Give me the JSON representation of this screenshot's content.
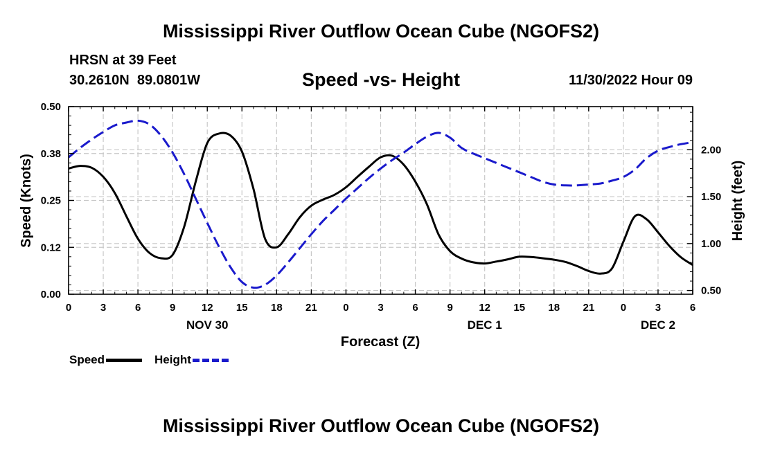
{
  "header": {
    "main_title": "Mississippi River Outflow Ocean Cube (NGOFS2)",
    "station": "HRSN at 39 Feet",
    "coords": "30.2610N  89.0801W",
    "subtitle": "Speed -vs- Height",
    "datetime": "11/30/2022 Hour 09",
    "footer_title": "Mississippi River Outflow Ocean Cube (NGOFS2)"
  },
  "legend": {
    "speed_label": "Speed",
    "height_label": "Height"
  },
  "colors": {
    "speed": "#000000",
    "height": "#1a1acc",
    "grid": "#c8c8c8"
  },
  "chart_data": {
    "type": "line",
    "xlabel": "Forecast (Z)",
    "x_unit": "hours since 2022-11-30 00Z",
    "xlim": [
      0,
      54
    ],
    "x_ticks": [
      0,
      3,
      6,
      9,
      12,
      15,
      18,
      21,
      24,
      27,
      30,
      33,
      36,
      39,
      42,
      45,
      48,
      51,
      54
    ],
    "x_tick_labels": [
      "0",
      "3",
      "6",
      "9",
      "12",
      "15",
      "18",
      "21",
      "0",
      "3",
      "6",
      "9",
      "12",
      "15",
      "18",
      "21",
      "0",
      "3",
      "6"
    ],
    "day_labels": [
      {
        "x": 12,
        "text": "NOV 30"
      },
      {
        "x": 36,
        "text": "DEC 1"
      },
      {
        "x": 51,
        "text": "DEC 2"
      }
    ],
    "y_left": {
      "label": "Speed (Knots)",
      "lim": [
        0,
        0.5
      ],
      "ticks": [
        0,
        0.125,
        0.25,
        0.375,
        0.5
      ],
      "tick_labels": [
        "0.00",
        "0.12",
        "0.25",
        "0.38",
        "0.50"
      ]
    },
    "y_right": {
      "label": "Height (feet)",
      "lim": [
        0.46,
        2.46
      ],
      "ticks": [
        0.5,
        1.0,
        1.5,
        2.0
      ],
      "tick_labels": [
        "0.50",
        "1.00",
        "1.50",
        "2.00"
      ]
    },
    "series": [
      {
        "name": "Speed",
        "axis": "left",
        "style": "solid",
        "x": [
          0,
          1,
          2,
          3,
          4,
          5,
          6,
          7,
          8,
          9,
          10,
          11,
          12,
          13,
          14,
          15,
          16,
          17,
          18,
          19,
          20,
          21,
          22,
          23,
          24,
          25,
          26,
          27,
          28,
          29,
          30,
          31,
          32,
          33,
          34,
          35,
          36,
          37,
          38,
          39,
          40,
          41,
          42,
          43,
          44,
          45,
          46,
          47,
          48,
          49,
          50,
          51,
          52,
          53,
          54
        ],
        "values": [
          0.335,
          0.342,
          0.337,
          0.313,
          0.27,
          0.208,
          0.148,
          0.11,
          0.096,
          0.105,
          0.18,
          0.3,
          0.403,
          0.428,
          0.423,
          0.38,
          0.28,
          0.148,
          0.125,
          0.16,
          0.205,
          0.236,
          0.252,
          0.265,
          0.285,
          0.313,
          0.34,
          0.365,
          0.369,
          0.345,
          0.3,
          0.24,
          0.16,
          0.115,
          0.095,
          0.085,
          0.082,
          0.087,
          0.093,
          0.1,
          0.099,
          0.096,
          0.092,
          0.086,
          0.075,
          0.062,
          0.055,
          0.068,
          0.14,
          0.208,
          0.2,
          0.165,
          0.128,
          0.098,
          0.078
        ]
      },
      {
        "name": "Height",
        "axis": "right",
        "style": "dashed",
        "x": [
          0,
          1,
          2,
          3,
          4,
          5,
          6,
          7,
          8,
          9,
          10,
          11,
          12,
          13,
          14,
          15,
          16,
          17,
          18,
          19,
          20,
          21,
          22,
          23,
          24,
          25,
          26,
          27,
          28,
          29,
          30,
          31,
          32,
          33,
          34,
          35,
          36,
          37,
          38,
          39,
          40,
          41,
          42,
          43,
          44,
          45,
          46,
          47,
          48,
          49,
          50,
          51,
          52,
          53,
          54
        ],
        "values": [
          1.92,
          2.02,
          2.11,
          2.19,
          2.26,
          2.29,
          2.31,
          2.27,
          2.15,
          1.97,
          1.74,
          1.48,
          1.22,
          0.97,
          0.75,
          0.59,
          0.53,
          0.56,
          0.66,
          0.8,
          0.95,
          1.1,
          1.24,
          1.36,
          1.48,
          1.59,
          1.7,
          1.8,
          1.89,
          1.97,
          2.06,
          2.14,
          2.18,
          2.13,
          2.02,
          1.96,
          1.91,
          1.86,
          1.81,
          1.76,
          1.71,
          1.66,
          1.63,
          1.62,
          1.62,
          1.63,
          1.64,
          1.67,
          1.71,
          1.79,
          1.91,
          1.99,
          2.03,
          2.06,
          2.08
        ]
      }
    ]
  }
}
